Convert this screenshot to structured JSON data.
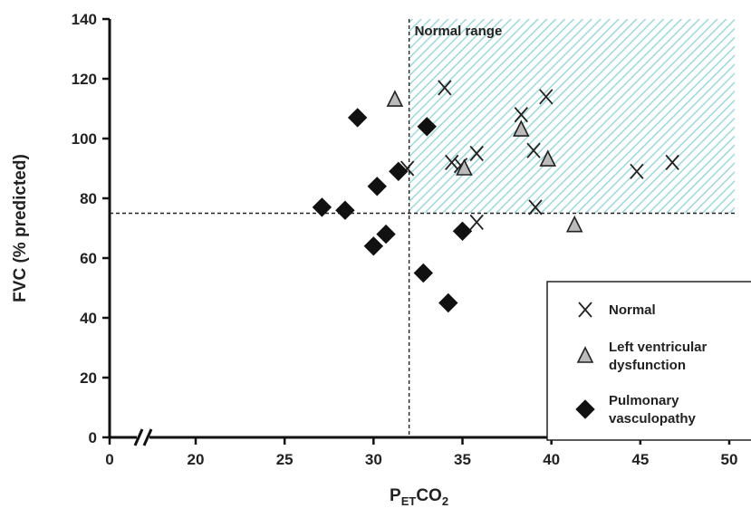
{
  "chart_data": {
    "type": "scatter",
    "xlabel": {
      "main": "P",
      "sub1": "ET",
      "mid": "CO",
      "sub2": "2"
    },
    "ylabel": "FVC (% predicted)",
    "xlim": [
      0,
      51
    ],
    "ylim": [
      0,
      140
    ],
    "x_ticks": [
      0,
      20,
      25,
      30,
      35,
      40,
      45,
      50
    ],
    "y_ticks": [
      0,
      20,
      40,
      60,
      80,
      100,
      120,
      140
    ],
    "axis_break": "x between 0 and 20",
    "grid": false,
    "reference_lines": {
      "x": 32,
      "y": 75
    },
    "shaded_region": {
      "label": "Normal range",
      "x": [
        32,
        51
      ],
      "y": [
        75,
        140
      ],
      "color": "#9fd8d6"
    },
    "legend": {
      "position": "bottom-right"
    },
    "series": [
      {
        "name": "Normal",
        "marker": "x",
        "color": "#222222",
        "points": [
          [
            31.9,
            90
          ],
          [
            34.0,
            117
          ],
          [
            34.4,
            92
          ],
          [
            34.9,
            91
          ],
          [
            35.8,
            95
          ],
          [
            35.8,
            72
          ],
          [
            38.3,
            108
          ],
          [
            39.0,
            96
          ],
          [
            39.7,
            114
          ],
          [
            39.1,
            77
          ],
          [
            44.8,
            89
          ],
          [
            46.8,
            92
          ]
        ]
      },
      {
        "name": "Left ventricular dysfunction",
        "marker": "triangle",
        "color": "#bbbbbb",
        "points": [
          [
            31.2,
            113
          ],
          [
            35.1,
            90
          ],
          [
            38.3,
            103
          ],
          [
            39.8,
            93
          ],
          [
            41.3,
            71
          ]
        ]
      },
      {
        "name": "Pulmonary vasculopathy",
        "marker": "diamond",
        "color": "#111111",
        "points": [
          [
            29.1,
            107
          ],
          [
            33.0,
            104
          ],
          [
            31.4,
            89
          ],
          [
            30.2,
            84
          ],
          [
            27.1,
            77
          ],
          [
            28.4,
            76
          ],
          [
            30.7,
            68
          ],
          [
            30.0,
            64
          ],
          [
            35.0,
            69
          ],
          [
            32.8,
            55
          ],
          [
            34.2,
            45
          ]
        ]
      }
    ]
  }
}
